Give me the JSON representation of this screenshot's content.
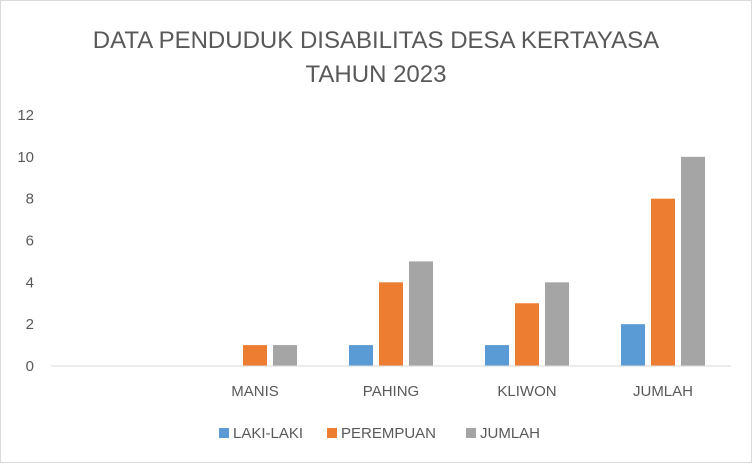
{
  "chart_data": {
    "type": "bar",
    "title_lines": [
      "DATA PENDUDUK DISABILITAS DESA KERTAYASA",
      "TAHUN 2023"
    ],
    "categories": [
      "",
      "MANIS",
      "PAHING",
      "KLIWON",
      "JUMLAH"
    ],
    "series": [
      {
        "name": "LAKI-LAKI",
        "color": "#5b9bd5",
        "values": [
          0,
          0,
          1,
          1,
          2
        ]
      },
      {
        "name": "PEREMPUAN",
        "color": "#ed7d31",
        "values": [
          0,
          1,
          4,
          3,
          8
        ]
      },
      {
        "name": "JUMLAH",
        "color": "#a5a5a5",
        "values": [
          0,
          1,
          5,
          4,
          10
        ]
      }
    ],
    "ylim": [
      0,
      12
    ],
    "yticks": [
      0,
      2,
      4,
      6,
      8,
      10,
      12
    ],
    "grid": false,
    "legend": "bottom"
  }
}
